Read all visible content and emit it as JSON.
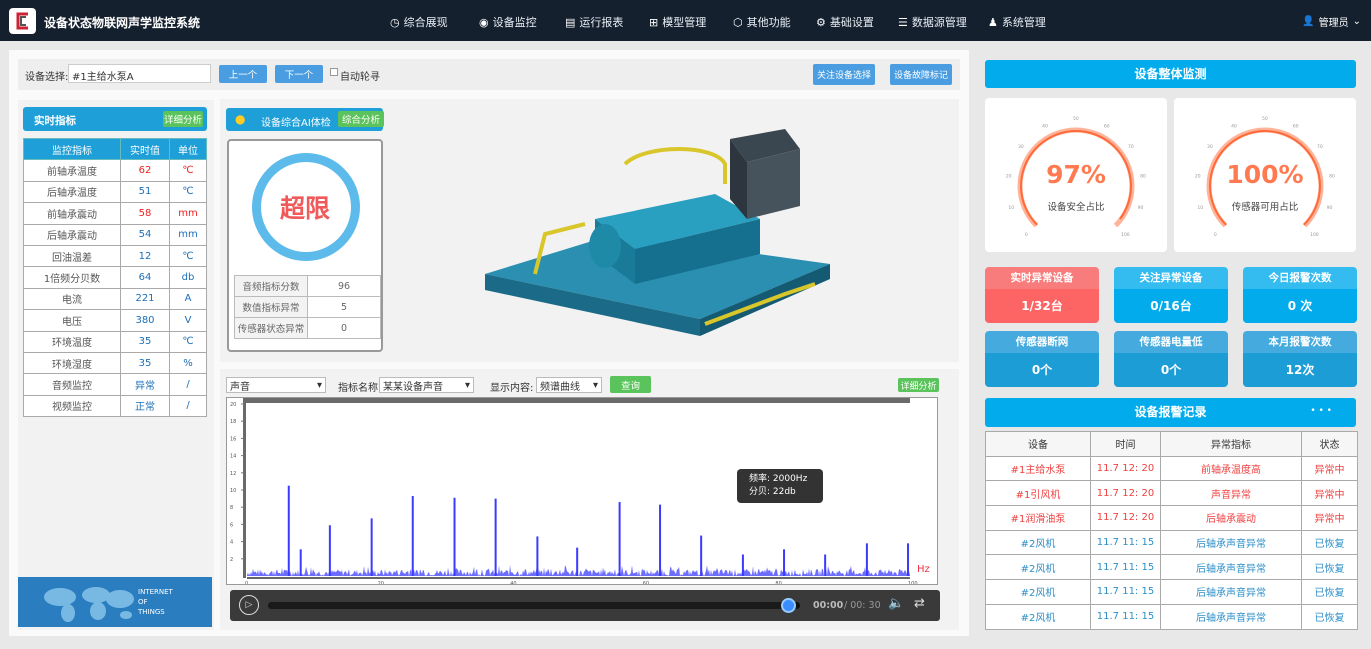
{
  "header": {
    "title": "设备状态物联网声学监控系统",
    "nav": [
      {
        "label": "综合展现",
        "icon": "gauge-icon"
      },
      {
        "label": "设备监控",
        "icon": "eye-icon"
      },
      {
        "label": "运行报表",
        "icon": "report-icon"
      },
      {
        "label": "模型管理",
        "icon": "model-icon"
      },
      {
        "label": "其他功能",
        "icon": "cube-icon"
      },
      {
        "label": "基础设置",
        "icon": "gear-icon"
      },
      {
        "label": "数据源管理",
        "icon": "database-icon"
      },
      {
        "label": "系统管理",
        "icon": "user-gear-icon"
      }
    ],
    "user": "管理员"
  },
  "device_bar": {
    "label": "设备选择:",
    "value": "#1主给水泵A",
    "prev": "上一个",
    "next": "下一个",
    "auto": "自动轮寻",
    "focus_btn": "关注设备选择",
    "fault_btn": "设备故障标记"
  },
  "realtime": {
    "title": "实时指标",
    "detail_btn": "详细分析",
    "columns": [
      "监控指标",
      "实时值",
      "单位"
    ],
    "rows": [
      [
        "前轴承温度",
        "62",
        "℃",
        true
      ],
      [
        "后轴承温度",
        "51",
        "℃",
        false
      ],
      [
        "前轴承震动",
        "58",
        "mm",
        true
      ],
      [
        "后轴承震动",
        "54",
        "mm",
        false
      ],
      [
        "回油温差",
        "12",
        "℃",
        false
      ],
      [
        "1倍频分贝数",
        "64",
        "db",
        false
      ],
      [
        "电流",
        "221",
        "A",
        false
      ],
      [
        "电压",
        "380",
        "V",
        false
      ],
      [
        "环境温度",
        "35",
        "℃",
        false
      ],
      [
        "环境湿度",
        "35",
        "%",
        false
      ],
      [
        "音频监控",
        "异常",
        "/",
        false
      ],
      [
        "视频监控",
        "正常",
        "/",
        false
      ]
    ],
    "banner": [
      "INTERNET",
      "OF",
      "THINGS"
    ]
  },
  "ai": {
    "title": "设备综合AI体检",
    "btn": "综合分析",
    "status": "超限",
    "stats": [
      [
        "音频指标分数",
        "96"
      ],
      [
        "数值指标异常",
        "5"
      ],
      [
        "传感器状态异常",
        "0"
      ]
    ]
  },
  "spectrum": {
    "source": "声音",
    "metric_label": "指标名称:",
    "metric": "某某设备声音",
    "display_label": "显示内容:",
    "display": "频谱曲线",
    "query": "查询",
    "detail_btn": "详细分析",
    "tooltip": {
      "freq": "频率: 2000Hz",
      "db": "分贝: 22db"
    },
    "player": {
      "current": "00:00",
      "total": "/ 00: 30",
      "progress": 0.98
    }
  },
  "chart_data": {
    "type": "bar",
    "title": "",
    "xlabel": "",
    "ylabel": "",
    "unit_label": "Hz",
    "xlim": [
      0,
      100
    ],
    "ylim": [
      0,
      20
    ],
    "x_ticks": [
      "0",
      "20",
      "40",
      "60",
      "80",
      "100"
    ],
    "y_ticks": [
      "2",
      "4",
      "6",
      "8",
      "10",
      "12",
      "14",
      "16",
      "18",
      "20"
    ],
    "peaks": {
      "x": [
        6.3,
        8.1,
        12.5,
        18.8,
        25,
        31.3,
        37.5,
        43.8,
        49.8,
        56.2,
        62.3,
        68.5,
        74.8,
        81,
        87.2,
        93.5,
        99.7
      ],
      "y": [
        10.5,
        3.1,
        5.9,
        6.7,
        9.3,
        9.1,
        9.0,
        4.6,
        3.3,
        8.6,
        8.3,
        4.7,
        2.5,
        3.1,
        2.5,
        3.8,
        3.8
      ]
    },
    "noise_level": 0.8,
    "color": "#3b3bff"
  },
  "overall": {
    "title": "设备整体监测",
    "gauges": [
      {
        "value": 97,
        "text": "97%",
        "label": "设备安全占比"
      },
      {
        "value": 100,
        "text": "100%",
        "label": "传感器可用占比"
      }
    ],
    "gauge_ticks": [
      "0",
      "10",
      "20",
      "30",
      "40",
      "50",
      "60",
      "70",
      "80",
      "90",
      "100"
    ],
    "tiles": [
      {
        "title": "实时异常设备",
        "value": "1/32台",
        "style": "red"
      },
      {
        "title": "关注异常设备",
        "value": "0/16台",
        "style": "blue"
      },
      {
        "title": "今日报警次数",
        "value": "0 次",
        "style": "blue"
      },
      {
        "title": "传感器断网",
        "value": "0个",
        "style": "dark"
      },
      {
        "title": "传感器电量低",
        "value": "0个",
        "style": "dark"
      },
      {
        "title": "本月报警次数",
        "value": "12次",
        "style": "dark"
      }
    ]
  },
  "alarms": {
    "title": "设备报警记录",
    "more": "• • •",
    "columns": [
      "设备",
      "时间",
      "异常指标",
      "状态"
    ],
    "rows": [
      [
        "#1主给水泵",
        "11.7  12: 20",
        "前轴承温度高",
        "异常中",
        true
      ],
      [
        "#1引风机",
        "11.7  12: 20",
        "声音异常",
        "异常中",
        true
      ],
      [
        "#1润滑油泵",
        "11.7  12: 20",
        "后轴承震动",
        "异常中",
        true
      ],
      [
        "#2风机",
        "11.7  11: 15",
        "后轴承声音异常",
        "已恢复",
        false
      ],
      [
        "#2风机",
        "11.7  11: 15",
        "后轴承声音异常",
        "已恢复",
        false
      ],
      [
        "#2风机",
        "11.7  11: 15",
        "后轴承声音异常",
        "已恢复",
        false
      ],
      [
        "#2风机",
        "11.7  11: 15",
        "后轴承声音异常",
        "已恢复",
        false
      ]
    ]
  },
  "colors": {
    "header": "#14202e",
    "primary": "#1e9fd8",
    "accent": "#02acec",
    "alarm": "#fd6464",
    "green": "#5bc35b",
    "gauge": "#ff7a50"
  }
}
